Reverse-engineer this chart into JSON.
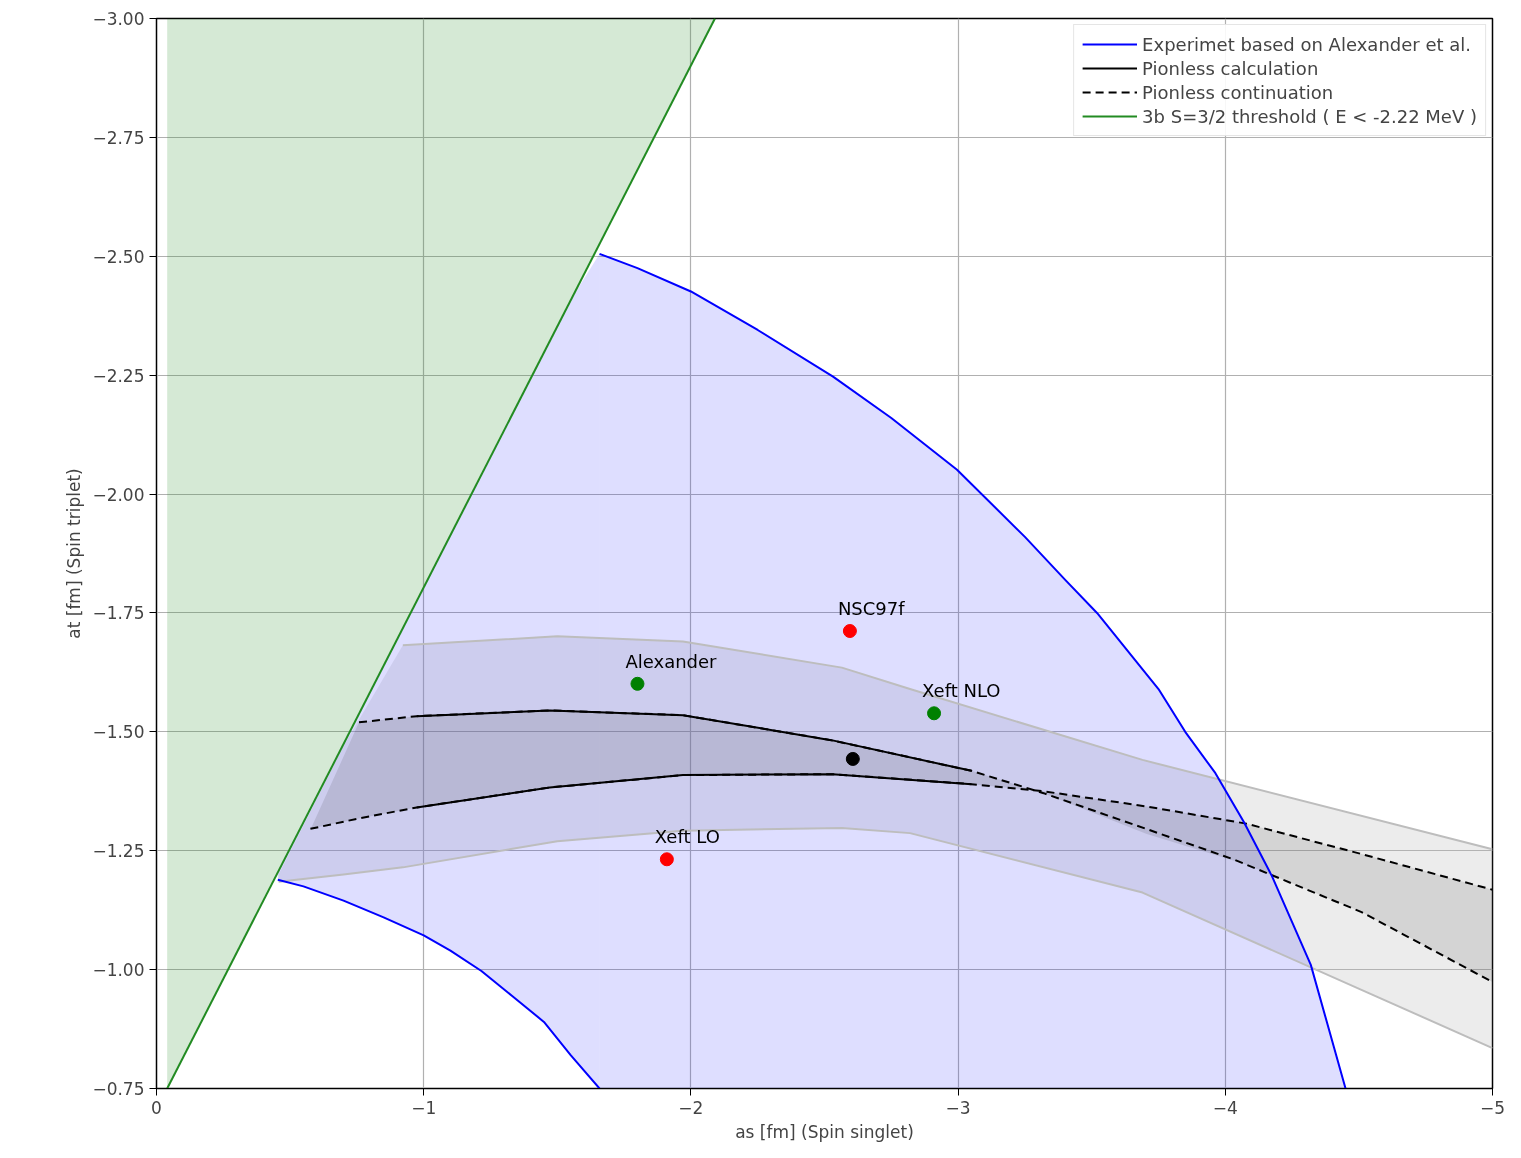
{
  "chart_data": {
    "type": "line",
    "xlabel": "as [fm] (Spin singlet)",
    "ylabel": "at [fm] (Spin triplet)",
    "xlim": [
      0,
      -5
    ],
    "ylim": [
      -0.75,
      -3.0
    ],
    "xticks": [
      {
        "value": 0,
        "label": "0"
      },
      {
        "value": -1,
        "label": "−1"
      },
      {
        "value": -2,
        "label": "−2"
      },
      {
        "value": -3,
        "label": "−3"
      },
      {
        "value": -4,
        "label": "−4"
      },
      {
        "value": -5,
        "label": "−5"
      }
    ],
    "yticks": [
      {
        "value": -0.75,
        "label": "−0.75"
      },
      {
        "value": -1.0,
        "label": "−1.00"
      },
      {
        "value": -1.25,
        "label": "−1.25"
      },
      {
        "value": -1.5,
        "label": "−1.50"
      },
      {
        "value": -1.75,
        "label": "−1.75"
      },
      {
        "value": -2.0,
        "label": "−2.00"
      },
      {
        "value": -2.25,
        "label": "−2.25"
      },
      {
        "value": -2.5,
        "label": "−2.50"
      },
      {
        "value": -2.75,
        "label": "−2.75"
      },
      {
        "value": -3.0,
        "label": "−3.00"
      }
    ],
    "grid": true,
    "legend": "top right",
    "series": [
      {
        "color": "#bdbdbd",
        "line_style": "solid",
        "x": [
          -0.457,
          -0.7,
          -0.922,
          -1.5,
          -1.97,
          -2.565,
          -2.82,
          -3.69,
          -5
        ],
        "values": [
          -1.185,
          -1.2,
          -1.215,
          -1.27,
          -1.292,
          -1.298,
          -1.287,
          -1.162,
          -0.835
        ],
        "lower": [
          -1.185,
          -1.2,
          -1.215,
          -1.27,
          -1.292,
          -1.298,
          -1.287,
          -1.162,
          -0.835
        ],
        "upper": [
          -1.2,
          -1.47,
          -1.682,
          -1.701,
          -1.69,
          -1.635,
          -1.59,
          -1.441,
          -1.253
        ]
      },
      {
        "color": "#bdbdbd",
        "line_style": "solid",
        "x": [
          -0.922,
          -1.5,
          -1.97,
          -2.565,
          -2.82,
          -3.69,
          -5
        ],
        "values": [
          -1.682,
          -1.701,
          -1.69,
          -1.635,
          -1.59,
          -1.441,
          -1.253
        ]
      },
      {
        "name": "Experimet based on Alexander et al.",
        "color": "#0000ff",
        "line_style": "solid",
        "x": [
          -1.658,
          -1.8,
          -2.0,
          -2.25,
          -2.532,
          -2.75,
          -2.996,
          -3.25,
          -3.4,
          -3.52,
          -3.75,
          -3.85,
          -3.963,
          -4.07,
          -4.175,
          -4.25,
          -4.32,
          -4.45
        ],
        "values": [
          -2.505,
          -2.475,
          -2.426,
          -2.345,
          -2.247,
          -2.16,
          -2.051,
          -1.91,
          -1.82,
          -1.75,
          -1.59,
          -1.5,
          -1.413,
          -1.31,
          -1.196,
          -1.1,
          -1.01,
          -0.75
        ],
        "lower": [
          -0.75,
          -0.75,
          -0.75,
          -0.75,
          -0.75,
          -0.75,
          -0.75,
          -0.75,
          -0.75,
          -0.75,
          -0.75,
          -0.75,
          -0.75,
          -0.75,
          -0.75,
          -0.75,
          -0.75,
          -0.75
        ],
        "upper": [
          -2.505,
          -2.475,
          -2.426,
          -2.345,
          -2.247,
          -2.16,
          -2.051,
          -1.91,
          -1.82,
          -1.75,
          -1.59,
          -1.5,
          -1.413,
          -1.31,
          -1.196,
          -1.1,
          -1.01,
          -0.75
        ]
      },
      {
        "type": "line",
        "color": "#0000ff",
        "line_style": "solid",
        "x": [
          -0.454,
          -0.55,
          -0.7,
          -0.85,
          -1.0,
          -1.1,
          -1.216,
          -1.33,
          -1.45,
          -1.55,
          -1.658
        ],
        "values": [
          -1.189,
          -1.175,
          -1.145,
          -1.11,
          -1.072,
          -1.04,
          -0.997,
          -0.945,
          -0.89,
          -0.82,
          -0.75
        ],
        "lower": [
          -1.189,
          -1.175,
          -1.145,
          -1.11,
          -1.072,
          -1.04,
          -0.997,
          -0.945,
          -0.89,
          -0.82,
          -0.75
        ],
        "upper": [
          -1.204,
          -1.31,
          -1.474,
          -1.639,
          -1.804,
          -1.915,
          -2.042,
          -2.167,
          -2.298,
          -2.408,
          -2.505
        ]
      },
      {
        "name": "Pionless calculation",
        "color": "#000000",
        "line_style": "solid",
        "x": [
          -0.974,
          -1.472,
          -1.97,
          -2.53,
          -3.05
        ],
        "values": [
          -1.533,
          -1.545,
          -1.535,
          -1.482,
          -1.418
        ]
      },
      {
        "color": "#000000",
        "line_style": "solid",
        "x": [
          -0.974,
          -1.472,
          -1.97,
          -2.53,
          -3.05
        ],
        "values": [
          -1.341,
          -1.383,
          -1.409,
          -1.411,
          -1.39
        ]
      },
      {
        "name": "Pionless continuation",
        "color": "#000000",
        "line_style": "dashed",
        "x": [
          -0.758,
          -0.974,
          -1.472,
          -1.97,
          -2.53,
          -3.05,
          -3.32,
          -4.03,
          -4.51,
          -5
        ],
        "values": [
          -1.52,
          -1.533,
          -1.545,
          -1.535,
          -1.482,
          -1.418,
          -1.371,
          -1.232,
          -1.121,
          -0.974
        ]
      },
      {
        "color": "#000000",
        "line_style": "dashed",
        "x": [
          -0.576,
          -0.758,
          -0.974,
          -1.472,
          -1.97,
          -2.53,
          -3.05,
          -3.32,
          -3.706,
          -4.078,
          -4.51,
          -5
        ],
        "values": [
          -1.296,
          -1.318,
          -1.341,
          -1.383,
          -1.409,
          -1.411,
          -1.39,
          -1.375,
          -1.343,
          -1.307,
          -1.243,
          -1.168
        ],
        "lower": [
          -1.296,
          -1.318,
          -1.341,
          -1.383,
          -1.409,
          -1.411,
          -1.39,
          -1.375,
          -1.343,
          -1.307,
          -1.243,
          -1.168
        ],
        "upper": [
          -1.294,
          -1.52,
          -1.533,
          -1.545,
          -1.535,
          -1.482,
          -1.418,
          -1.371,
          -1.285,
          -1.221,
          -1.121,
          -0.974
        ]
      },
      {
        "name": "3b S=3/2 threshold ( E < -2.22 MeV )",
        "color": "#228b22",
        "line_style": "solid",
        "x": [
          -0.04,
          -2.09
        ],
        "values": [
          -0.75,
          -3.0
        ],
        "lower": [
          -0.75,
          -3.0
        ],
        "upper": [
          -3.0,
          -3.0
        ]
      },
      {
        "type": "scatter",
        "marker": "circle",
        "x": [
          -2.595,
          -1.8,
          -2.91,
          -2.606,
          -1.91
        ],
        "values": [
          -1.712,
          -1.601,
          -1.539,
          -1.443,
          -1.232
        ],
        "colors": [
          "#ff0000",
          "#008000",
          "#008000",
          "#000000",
          "#ff0000"
        ]
      }
    ],
    "annotations": [
      {
        "text": "NSC97f",
        "x": -2.595,
        "y": -1.712
      },
      {
        "text": "Alexander",
        "x": -1.8,
        "y": -1.601
      },
      {
        "text": "Xeft NLO",
        "x": -2.91,
        "y": -1.539
      },
      {
        "text": "Xeft LO",
        "x": -1.91,
        "y": -1.232
      }
    ]
  }
}
